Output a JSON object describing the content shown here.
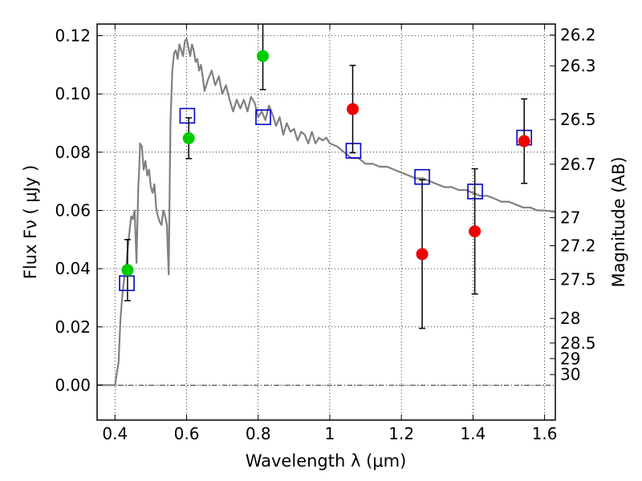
{
  "chart_data": {
    "type": "scatter",
    "title": "",
    "xlabel": "Wavelength  λ (μm)",
    "ylabel": "Flux  Fν  ( μJy )",
    "y2label": "Magnitude (AB)",
    "xlim": [
      0.35,
      1.63
    ],
    "ylim": [
      -0.012,
      0.124
    ],
    "grid": true,
    "zero_line": 0.0,
    "x_ticks": [
      0.4,
      0.6,
      0.8,
      1.0,
      1.2,
      1.4,
      1.6
    ],
    "x_tick_labels": [
      "0.4",
      "0.6",
      "0.8",
      "1",
      "1.2",
      "1.4",
      "1.6"
    ],
    "y_ticks": [
      0.0,
      0.02,
      0.04,
      0.06,
      0.08,
      0.1,
      0.12
    ],
    "y_tick_labels": [
      "0.00",
      "0.02",
      "0.04",
      "0.06",
      "0.08",
      "0.10",
      "0.12"
    ],
    "mag_ticks": [
      26.2,
      26.3,
      26.5,
      26.7,
      27,
      27.2,
      27.5,
      28,
      28.5,
      29,
      30
    ],
    "mag_tick_labels": [
      "26.2",
      "26.3",
      "26.5",
      "26.7",
      "27",
      "27.2",
      "27.5",
      "28",
      "28.5",
      "29",
      "30"
    ],
    "series": [
      {
        "kind": "line",
        "color": "#808080",
        "x": [
          0.35,
          0.4,
          0.41,
          0.415,
          0.42,
          0.425,
          0.43,
          0.435,
          0.44,
          0.445,
          0.45,
          0.455,
          0.46,
          0.465,
          0.468,
          0.47,
          0.475,
          0.48,
          0.485,
          0.49,
          0.495,
          0.5,
          0.505,
          0.51,
          0.515,
          0.52,
          0.525,
          0.53,
          0.535,
          0.54,
          0.545,
          0.55,
          0.555,
          0.56,
          0.565,
          0.57,
          0.575,
          0.58,
          0.585,
          0.59,
          0.595,
          0.6,
          0.605,
          0.61,
          0.615,
          0.62,
          0.625,
          0.63,
          0.635,
          0.64,
          0.645,
          0.65,
          0.66,
          0.67,
          0.68,
          0.69,
          0.7,
          0.71,
          0.72,
          0.73,
          0.74,
          0.75,
          0.76,
          0.77,
          0.78,
          0.79,
          0.8,
          0.81,
          0.82,
          0.83,
          0.84,
          0.85,
          0.86,
          0.87,
          0.88,
          0.89,
          0.9,
          0.91,
          0.92,
          0.93,
          0.94,
          0.95,
          0.96,
          0.97,
          0.98,
          0.99,
          1.0,
          1.02,
          1.04,
          1.06,
          1.08,
          1.1,
          1.12,
          1.14,
          1.16,
          1.18,
          1.2,
          1.22,
          1.24,
          1.26,
          1.28,
          1.3,
          1.32,
          1.34,
          1.36,
          1.38,
          1.4,
          1.42,
          1.44,
          1.46,
          1.48,
          1.5,
          1.52,
          1.54,
          1.56,
          1.58,
          1.6,
          1.63
        ],
        "y": [
          0.0,
          0.0,
          0.008,
          0.022,
          0.03,
          0.036,
          0.039,
          0.046,
          0.052,
          0.058,
          0.057,
          0.06,
          0.042,
          0.068,
          0.075,
          0.083,
          0.082,
          0.074,
          0.077,
          0.072,
          0.074,
          0.068,
          0.066,
          0.069,
          0.061,
          0.058,
          0.056,
          0.055,
          0.06,
          0.058,
          0.055,
          0.038,
          0.09,
          0.108,
          0.114,
          0.115,
          0.112,
          0.117,
          0.115,
          0.113,
          0.118,
          0.119,
          0.116,
          0.113,
          0.117,
          0.115,
          0.111,
          0.112,
          0.108,
          0.11,
          0.106,
          0.101,
          0.105,
          0.108,
          0.103,
          0.106,
          0.1,
          0.103,
          0.098,
          0.094,
          0.098,
          0.095,
          0.098,
          0.094,
          0.099,
          0.097,
          0.092,
          0.094,
          0.091,
          0.096,
          0.093,
          0.089,
          0.092,
          0.086,
          0.09,
          0.087,
          0.088,
          0.084,
          0.087,
          0.086,
          0.083,
          0.087,
          0.083,
          0.085,
          0.084,
          0.085,
          0.083,
          0.082,
          0.08,
          0.078,
          0.078,
          0.076,
          0.076,
          0.075,
          0.075,
          0.074,
          0.073,
          0.072,
          0.071,
          0.071,
          0.07,
          0.069,
          0.068,
          0.068,
          0.067,
          0.067,
          0.066,
          0.065,
          0.065,
          0.064,
          0.063,
          0.063,
          0.062,
          0.061,
          0.061,
          0.06,
          0.06,
          0.0595
        ]
      },
      {
        "kind": "points",
        "marker": "square-open",
        "color": "#0000cc",
        "x": [
          0.433,
          0.602,
          0.814,
          1.066,
          1.258,
          1.406,
          1.543
        ],
        "y": [
          0.035,
          0.0925,
          0.092,
          0.0805,
          0.0715,
          0.0665,
          0.085
        ]
      },
      {
        "kind": "points",
        "marker": "circle",
        "color": "#00cc00",
        "x": [
          0.435,
          0.606,
          0.813
        ],
        "y": [
          0.0395,
          0.0848,
          0.113
        ],
        "err": [
          0.0105,
          0.007,
          0.0115
        ]
      },
      {
        "kind": "points",
        "marker": "circle",
        "color": "#ee0000",
        "x": [
          1.064,
          1.258,
          1.405,
          1.543
        ],
        "y": [
          0.0948,
          0.045,
          0.0528,
          0.0838
        ],
        "err": [
          0.015,
          0.0255,
          0.0215,
          0.0145
        ]
      }
    ]
  }
}
